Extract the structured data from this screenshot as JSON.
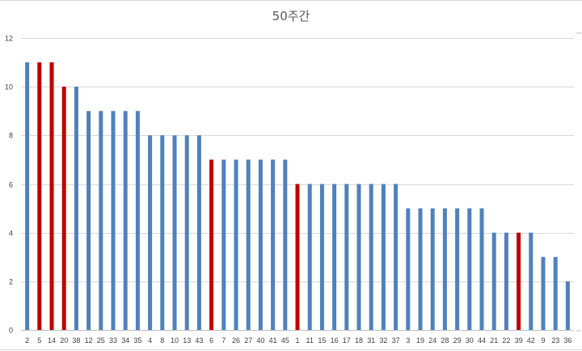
{
  "chart_data": {
    "type": "bar",
    "title": "50주간",
    "xlabel": "",
    "ylabel": "",
    "ylim": [
      0,
      12
    ],
    "yticks": [
      0,
      2,
      4,
      6,
      8,
      10,
      12
    ],
    "grid": true,
    "legend": "none",
    "colors": {
      "default": "#4f81bd",
      "highlight": "#c00000"
    },
    "categories": [
      "2",
      "5",
      "14",
      "20",
      "38",
      "12",
      "25",
      "33",
      "34",
      "35",
      "4",
      "8",
      "10",
      "13",
      "43",
      "6",
      "7",
      "26",
      "27",
      "40",
      "41",
      "45",
      "1",
      "11",
      "15",
      "16",
      "17",
      "18",
      "31",
      "32",
      "37",
      "3",
      "19",
      "24",
      "28",
      "29",
      "30",
      "44",
      "21",
      "22",
      "39",
      "42",
      "9",
      "23",
      "36"
    ],
    "values": [
      11,
      11,
      11,
      10,
      10,
      9,
      9,
      9,
      9,
      9,
      8,
      8,
      8,
      8,
      8,
      7,
      7,
      7,
      7,
      7,
      7,
      7,
      6,
      6,
      6,
      6,
      6,
      6,
      6,
      6,
      6,
      5,
      5,
      5,
      5,
      5,
      5,
      5,
      4,
      4,
      4,
      4,
      3,
      3,
      2
    ],
    "highlighted": [
      "5",
      "14",
      "20",
      "6",
      "1",
      "39"
    ]
  }
}
